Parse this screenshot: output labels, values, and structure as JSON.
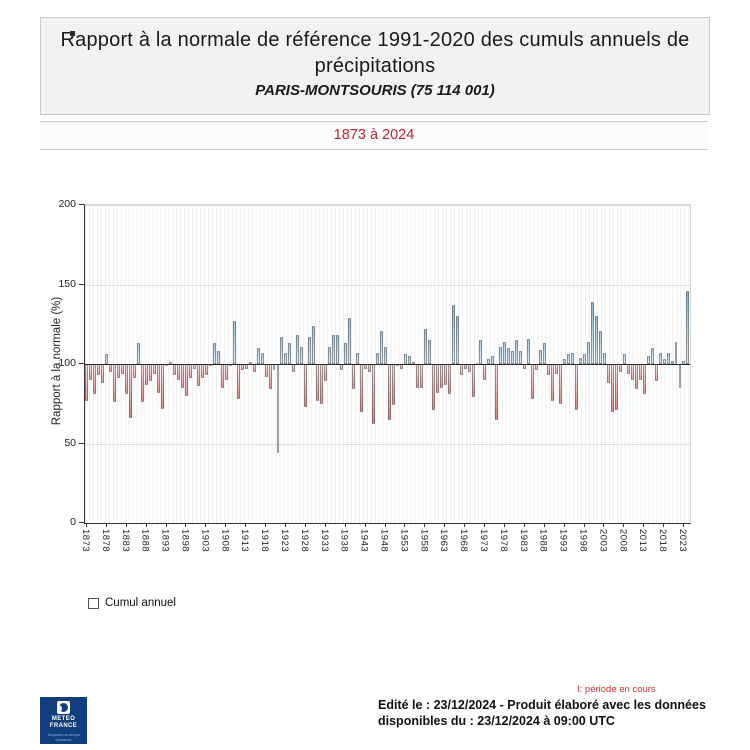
{
  "header": {
    "title": "Rapport à la normale de référence 1991-2020 des cumuls annuels de précipitations",
    "station": "PARIS-MONTSOURIS (75 114 001)",
    "period": "1873 à 2024"
  },
  "chart_data": {
    "type": "bar",
    "title": "Rapport à la normale de référence 1991-2020 des cumuls annuels de précipitations — PARIS-MONTSOURIS (75 114 001), 1873 à 2024",
    "xlabel": "",
    "ylabel": "Rapport à la normale (%)",
    "ylim": [
      0,
      200
    ],
    "y_ticks": [
      0,
      50,
      100,
      150,
      200
    ],
    "baseline": 100,
    "grid": "light horizontal at 50/150/200, dark line at 100, faint vertical line per year",
    "legend_position": "below-left",
    "years_start": 1873,
    "years_end": 2024,
    "x_tick_labels": [
      "1873",
      "1878",
      "1883",
      "1888",
      "1893",
      "1898",
      "1903",
      "1908",
      "1913",
      "1918",
      "1923",
      "1928",
      "1933",
      "1938",
      "1943",
      "1948",
      "1953",
      "1958",
      "1963",
      "1968",
      "1973",
      "1978",
      "1983",
      "1988",
      "1993",
      "1998",
      "2003",
      "2008",
      "2013",
      "2018",
      "2023"
    ],
    "values": [
      77,
      90,
      81,
      93,
      88,
      106,
      95,
      76,
      91,
      94,
      81,
      66,
      91,
      113,
      76,
      87,
      89,
      94,
      82,
      72,
      99,
      101,
      93,
      90,
      85,
      80,
      91,
      97,
      86,
      91,
      93,
      99,
      113,
      108,
      85,
      90,
      99,
      127,
      78,
      96,
      97,
      101,
      95,
      110,
      107,
      92,
      84,
      96,
      44,
      117,
      107,
      113,
      95,
      118,
      111,
      73,
      117,
      124,
      77,
      75,
      89,
      111,
      118,
      118,
      96,
      113,
      129,
      84,
      107,
      70,
      97,
      95,
      62,
      107,
      121,
      111,
      65,
      74,
      99,
      97,
      106,
      105,
      101,
      85,
      85,
      122,
      115,
      71,
      82,
      85,
      87,
      81,
      137,
      130,
      93,
      97,
      95,
      79,
      100,
      115,
      90,
      103,
      105,
      65,
      111,
      114,
      110,
      108,
      115,
      108,
      97,
      116,
      78,
      96,
      109,
      113,
      93,
      77,
      94,
      75,
      103,
      106,
      107,
      71,
      104,
      106,
      114,
      139,
      130,
      121,
      107,
      88,
      70,
      71,
      95,
      106,
      94,
      90,
      84,
      90,
      81,
      105,
      110,
      89,
      107,
      103,
      107,
      102,
      114,
      85,
      102,
      146
    ],
    "colors": {
      "above_light": "#ddedf8",
      "above_strong": "#7fb3d8",
      "below_light": "#fae3e3",
      "below_strong": "#d6615e",
      "bar_border": "rgba(80,80,80,0.55)"
    }
  },
  "legend": {
    "label": "Cumul annuel"
  },
  "footer": {
    "note": "I: période en cours",
    "line1": "Edité le : 23/12/2024 - Produit élaboré avec les données",
    "line2": "disponibles du : 23/12/2024 à 09:00 UTC"
  },
  "logo": {
    "name_line1": "METEO",
    "name_line2": "FRANCE",
    "tagline_line1": "Toujours un temps",
    "tagline_line2": "d'avance"
  }
}
